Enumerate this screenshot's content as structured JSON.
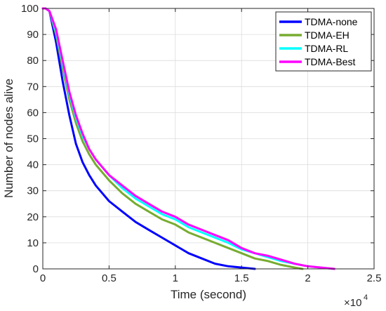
{
  "chart_data": {
    "type": "line",
    "title": "",
    "xlabel": "Time (second)",
    "ylabel": "Number of nodes alive",
    "x_multiplier_label": "×10",
    "x_multiplier_exponent": "4",
    "xlim": [
      0,
      2.5
    ],
    "ylim": [
      0,
      100
    ],
    "xticks": [
      0,
      0.5,
      1,
      1.5,
      2,
      2.5
    ],
    "xtick_labels": [
      "0",
      "0.5",
      "1",
      "1.5",
      "2",
      "2.5"
    ],
    "yticks": [
      0,
      10,
      20,
      30,
      40,
      50,
      60,
      70,
      80,
      90,
      100
    ],
    "ytick_labels": [
      "0",
      "10",
      "20",
      "30",
      "40",
      "50",
      "60",
      "70",
      "80",
      "90",
      "100"
    ],
    "grid": true,
    "legend_position": "top-right",
    "series": [
      {
        "name": "TDMA-none",
        "color": "#0000ff",
        "x": [
          0,
          0.02,
          0.05,
          0.1,
          0.15,
          0.2,
          0.25,
          0.3,
          0.35,
          0.4,
          0.5,
          0.6,
          0.7,
          0.8,
          0.9,
          1.0,
          1.1,
          1.2,
          1.3,
          1.4,
          1.5,
          1.6
        ],
        "y": [
          100,
          100,
          99,
          87,
          72,
          59,
          48,
          41,
          36,
          32,
          26,
          22,
          18,
          15,
          12,
          9,
          6,
          4,
          2,
          1,
          0.5,
          0
        ]
      },
      {
        "name": "TDMA-EH",
        "color": "#77ac30",
        "x": [
          0,
          0.02,
          0.05,
          0.1,
          0.15,
          0.2,
          0.25,
          0.3,
          0.35,
          0.4,
          0.5,
          0.6,
          0.7,
          0.8,
          0.9,
          1.0,
          1.1,
          1.2,
          1.3,
          1.4,
          1.5,
          1.6,
          1.7,
          1.8,
          1.9,
          1.96
        ],
        "y": [
          100,
          100,
          99,
          90,
          77,
          65,
          56,
          49,
          44,
          40,
          34,
          29,
          25,
          22,
          19,
          17,
          14,
          12,
          10,
          8,
          6,
          4,
          3,
          1.5,
          0.5,
          0
        ]
      },
      {
        "name": "TDMA-RL",
        "color": "#00ffff",
        "x": [
          0,
          0.02,
          0.05,
          0.1,
          0.15,
          0.2,
          0.25,
          0.3,
          0.35,
          0.4,
          0.5,
          0.6,
          0.7,
          0.8,
          0.9,
          1.0,
          1.1,
          1.2,
          1.3,
          1.4,
          1.5,
          1.6,
          1.7,
          1.8,
          1.9,
          2.0,
          2.1,
          2.2
        ],
        "y": [
          100,
          100,
          99,
          91,
          79,
          67,
          58,
          51,
          46,
          42,
          36,
          31,
          27,
          24,
          21,
          19,
          16,
          14,
          12,
          10,
          7.5,
          6,
          4.5,
          3,
          2,
          1,
          0.5,
          0
        ]
      },
      {
        "name": "TDMA-Best",
        "color": "#ff00ff",
        "x": [
          0,
          0.02,
          0.05,
          0.1,
          0.15,
          0.2,
          0.25,
          0.3,
          0.35,
          0.4,
          0.5,
          0.6,
          0.7,
          0.8,
          0.9,
          1.0,
          1.1,
          1.2,
          1.3,
          1.4,
          1.5,
          1.6,
          1.7,
          1.8,
          1.9,
          2.0,
          2.1,
          2.2
        ],
        "y": [
          100,
          100,
          99,
          92,
          80,
          68,
          59,
          52,
          46,
          42,
          36,
          32,
          28,
          25,
          22,
          20,
          17,
          15,
          13,
          11,
          8,
          6,
          5,
          3.5,
          2,
          1,
          0.5,
          0
        ]
      }
    ]
  }
}
